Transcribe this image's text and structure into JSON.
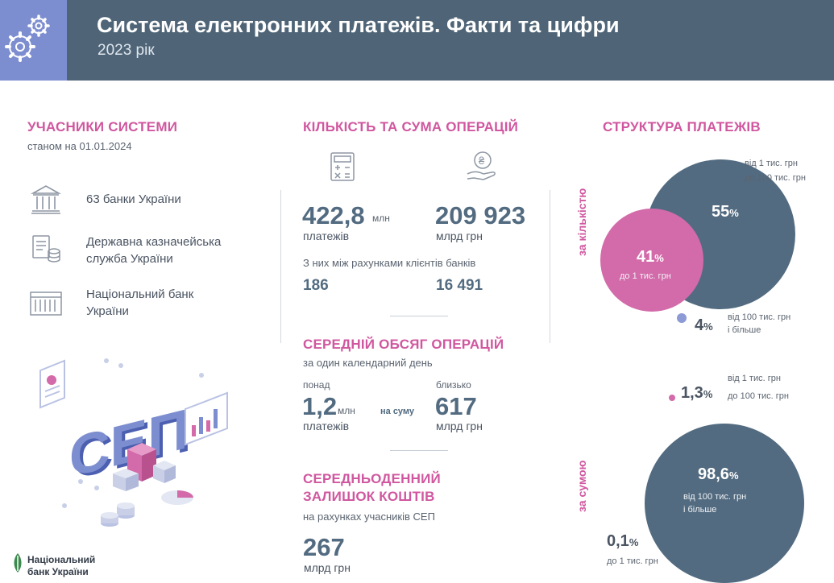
{
  "header": {
    "title": "Система електронних платежів. Факти та цифри",
    "subtitle": "2023 рік",
    "icon": "gears-icon"
  },
  "participants": {
    "title": "УЧАСНИКИ СИСТЕМИ",
    "subtitle": "станом на 01.01.2024",
    "items": [
      {
        "icon": "bank-building-icon",
        "line1": "63 банки України",
        "line2": ""
      },
      {
        "icon": "treasury-icon",
        "line1": "Державна казначейська",
        "line2": "служба України"
      },
      {
        "icon": "national-bank-icon",
        "line1": "Національний банк",
        "line2": "України"
      }
    ],
    "illustration_text": "СЕП"
  },
  "operations": {
    "title": "КІЛЬКІСТЬ ТА СУМА ОПЕРАЦІЙ",
    "count_value": "422,8",
    "count_unit": "млн",
    "count_label": "платежів",
    "sum_value": "209 923",
    "sum_label": "млрд грн",
    "between_label": "З них між рахунками клієнтів банків",
    "between_count": "186",
    "between_sum": "16 491"
  },
  "average": {
    "title": "СЕРЕДНІЙ ОБСЯГ ОПЕРАЦІЙ",
    "subtitle": "за один календарний день",
    "count_prefix": "понад",
    "count_value": "1,2",
    "count_unit": "млн",
    "count_label": "платежів",
    "connector": "на суму",
    "sum_prefix": "близько",
    "sum_value": "617",
    "sum_label": "млрд грн"
  },
  "balance": {
    "title_line1": "СЕРЕДНЬОДЕННИЙ",
    "title_line2": "ЗАЛИШОК КОШТІВ",
    "subtitle": "на рахунках учасників СЕП",
    "value": "267",
    "unit": "млрд грн"
  },
  "structure": {
    "title": "СТРУКТУРА ПЛАТЕЖІВ",
    "by_count": {
      "axis_label": "за кількістю",
      "large": {
        "pct": "55",
        "suffix": "%",
        "range_line1": "від 1 тис. грн",
        "range_line2": "до 100 тис. грн"
      },
      "small": {
        "pct": "41",
        "suffix": "%",
        "range": "до 1 тис. грн"
      },
      "tiny": {
        "pct": "4",
        "suffix": "%",
        "range_line1": "від 100 тис. грн",
        "range_line2": "і більше"
      }
    },
    "by_sum": {
      "axis_label": "за сумою",
      "large": {
        "pct": "98,6",
        "suffix": "%",
        "range_line1": "від 100 тис. грн",
        "range_line2": "і більше"
      },
      "mid": {
        "pct": "1,3",
        "suffix": "%",
        "range_line1": "від 1 тис. грн",
        "range_line2": "до 100 тис. грн"
      },
      "small": {
        "pct": "0,1",
        "suffix": "%",
        "range": "до 1 тис. грн"
      }
    },
    "colors": {
      "slate": "#526b80",
      "pink": "#d36aa9",
      "lavender": "#8c9ad6"
    }
  },
  "footer": {
    "logo_line1": "Національний",
    "logo_line2": "банк України"
  }
}
